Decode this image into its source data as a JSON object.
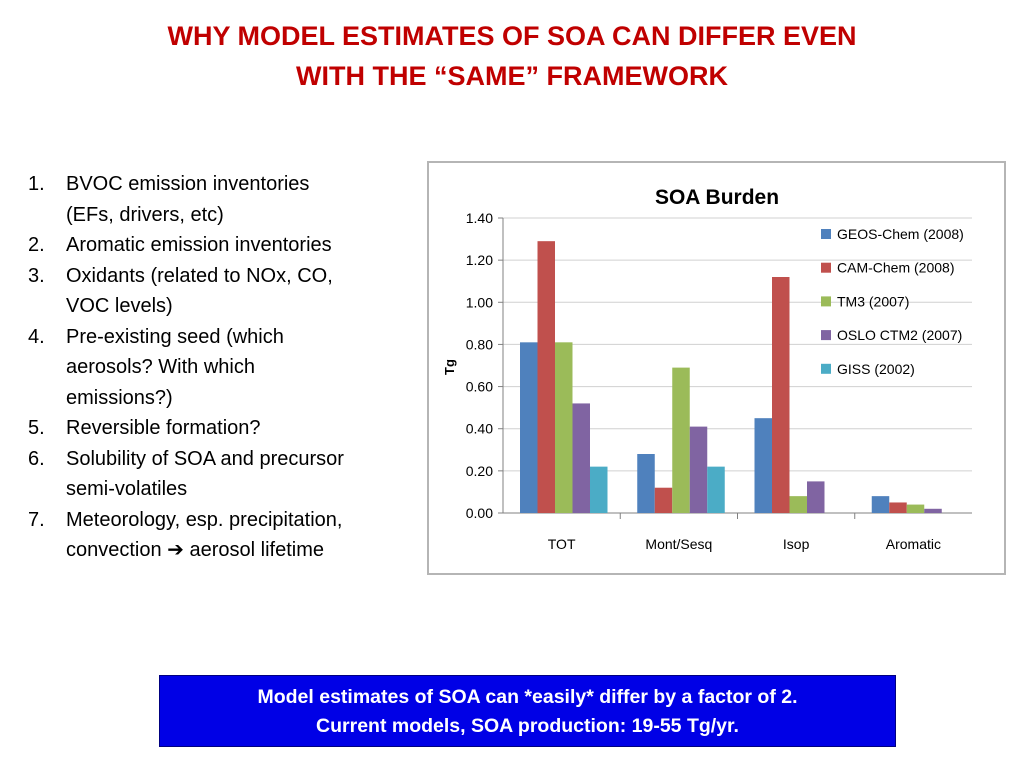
{
  "slide": {
    "title_line1": "WHY MODEL ESTIMATES OF SOA CAN DIFFER EVEN",
    "title_line2": "WITH THE “SAME” FRAMEWORK",
    "bullets": [
      {
        "num": "1.",
        "text": "BVOC emission inventories\n(EFs, drivers, etc)"
      },
      {
        "num": "2.",
        "text": "Aromatic emission inventories"
      },
      {
        "num": "3.",
        "text": "Oxidants (related to NOx, CO,\nVOC levels)"
      },
      {
        "num": "4.",
        "text": "Pre-existing seed (which\naerosols?  With which\nemissions?)"
      },
      {
        "num": "5.",
        "text": "Reversible formation?"
      },
      {
        "num": "6.",
        "text": "Solubility of SOA and precursor\nsemi-volatiles"
      },
      {
        "num": "7.",
        "text": "Meteorology, esp. precipitation,\nconvection ➔ aerosol lifetime"
      }
    ],
    "callout_line1": "Model estimates of SOA can *easily* differ by a factor of 2.",
    "callout_line2": "Current models, SOA production: 19-55 Tg/yr."
  },
  "chart_data": {
    "type": "bar",
    "title": "SOA Burden",
    "ylabel": "Tg",
    "xlabel": "",
    "ylim": [
      0,
      1.4
    ],
    "yticks": [
      "0.00",
      "0.20",
      "0.40",
      "0.60",
      "0.80",
      "1.00",
      "1.20",
      "1.40"
    ],
    "grid": true,
    "legend_position": "right",
    "categories": [
      "TOT",
      "Mont/Sesq",
      "Isop",
      "Aromatic"
    ],
    "series": [
      {
        "name": "GEOS-Chem (2008)",
        "color": "#4f81bd",
        "values": [
          0.81,
          0.28,
          0.45,
          0.08
        ]
      },
      {
        "name": "CAM-Chem (2008)",
        "color": "#c0504d",
        "values": [
          1.29,
          0.12,
          1.12,
          0.05
        ]
      },
      {
        "name": "TM3 (2007)",
        "color": "#9bbb59",
        "values": [
          0.81,
          0.69,
          0.08,
          0.04
        ]
      },
      {
        "name": "OSLO CTM2 (2007)",
        "color": "#8064a2",
        "values": [
          0.52,
          0.41,
          0.15,
          0.02
        ]
      },
      {
        "name": "GISS (2002)",
        "color": "#4bacc6",
        "values": [
          0.22,
          0.22,
          null,
          null
        ]
      }
    ]
  }
}
